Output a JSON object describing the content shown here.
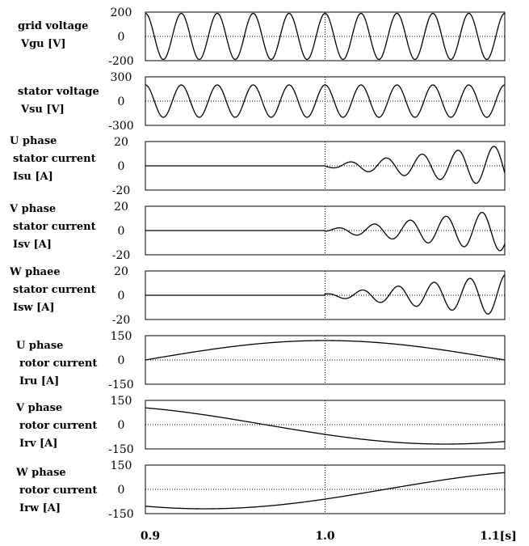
{
  "chart_data": {
    "type": "line",
    "x_ticks": [
      "0.9",
      "1.0",
      "1.1[s]"
    ],
    "xlim": [
      0.9,
      1.1
    ],
    "event_marker_x": 1.0,
    "grid": false,
    "panels": [
      {
        "label_lines": [
          "grid voltage",
          "Vgu   [V]"
        ],
        "ylim": [
          -200,
          200
        ],
        "y_ticks": [
          "200",
          "0",
          "-200"
        ],
        "series": [
          {
            "kind": "sine",
            "amplitude": 190,
            "frequency_hz": 50,
            "phase_deg": 90,
            "offset": 0
          }
        ]
      },
      {
        "label_lines": [
          "stator voltage",
          "Vsu      [V]"
        ],
        "ylim": [
          -300,
          300
        ],
        "y_ticks": [
          "300",
          "0",
          "-300"
        ],
        "series": [
          {
            "kind": "sine",
            "amplitude": 200,
            "frequency_hz": 50,
            "phase_deg": 90,
            "offset": 0
          }
        ]
      },
      {
        "label_lines": [
          "U phase",
          "stator current",
          "Isu   [A]"
        ],
        "ylim": [
          -20,
          20
        ],
        "y_ticks": [
          "20",
          "0",
          "-20"
        ],
        "series": [
          {
            "kind": "growing",
            "start_x": 1.0,
            "initial_amplitude": 1,
            "amplitude_at_end": 17,
            "frequency_hz": 50,
            "phase_deg": 200
          }
        ]
      },
      {
        "label_lines": [
          "V phase",
          "stator current",
          "Isv   [A]"
        ],
        "ylim": [
          -20,
          20
        ],
        "y_ticks": [
          "20",
          "0",
          "-20"
        ],
        "series": [
          {
            "kind": "growing",
            "start_x": 1.0,
            "initial_amplitude": 1,
            "amplitude_at_end": 17,
            "frequency_hz": 50,
            "phase_deg": 320
          }
        ]
      },
      {
        "label_lines": [
          "W phaee",
          "stator current",
          "Isw    [A]"
        ],
        "ylim": [
          -20,
          20
        ],
        "y_ticks": [
          "20",
          "0",
          "-20"
        ],
        "series": [
          {
            "kind": "growing",
            "start_x": 1.0,
            "initial_amplitude": 1,
            "amplitude_at_end": 17,
            "frequency_hz": 50,
            "phase_deg": 80
          }
        ]
      },
      {
        "label_lines": [
          "U phase",
          "rotor current",
          "Iru   [A]"
        ],
        "ylim": [
          -150,
          150
        ],
        "y_ticks": [
          "150",
          "0",
          "-150"
        ],
        "series": [
          {
            "kind": "sine",
            "amplitude": 120,
            "frequency_hz": 2.5,
            "phase_deg": 0,
            "offset": 0
          }
        ]
      },
      {
        "label_lines": [
          "V phase",
          "rotor current",
          "Irv   [A]"
        ],
        "ylim": [
          -150,
          150
        ],
        "y_ticks": [
          "150",
          "0",
          "-150"
        ],
        "series": [
          {
            "kind": "sine",
            "amplitude": 120,
            "frequency_hz": 2.5,
            "phase_deg": 120,
            "offset": 0
          }
        ]
      },
      {
        "label_lines": [
          "W phase",
          "rotor current",
          "Irw   [A]"
        ],
        "ylim": [
          -150,
          150
        ],
        "y_ticks": [
          "150",
          "0",
          "-150"
        ],
        "series": [
          {
            "kind": "sine",
            "amplitude": 120,
            "frequency_hz": 2.5,
            "phase_deg": 240,
            "offset": 0
          }
        ]
      }
    ]
  }
}
